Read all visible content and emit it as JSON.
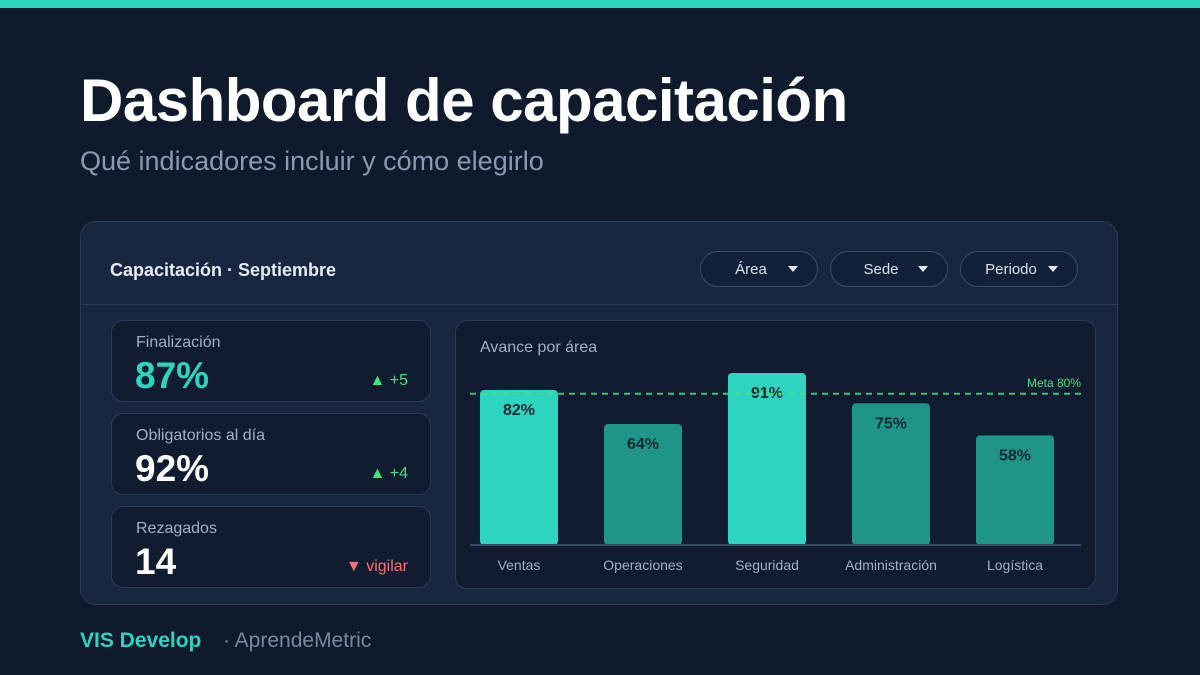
{
  "header": {
    "title": "Dashboard de capacitación",
    "subtitle": "Qué indicadores incluir y cómo elegirlo"
  },
  "card": {
    "title": "Capacitación · Septiembre",
    "filters": [
      {
        "label": "Área"
      },
      {
        "label": "Sede"
      },
      {
        "label": "Periodo"
      }
    ]
  },
  "kpis": [
    {
      "label": "Finalización",
      "value": "87%",
      "delta": "▲ +5",
      "trend": "up"
    },
    {
      "label": "Obligatorios al día",
      "value": "92%",
      "delta": "▲ +4",
      "trend": "up"
    },
    {
      "label": "Rezagados",
      "value": "14",
      "delta": "▼ vigilar",
      "trend": "down"
    }
  ],
  "chart_data": {
    "type": "bar",
    "title": "Avance por área",
    "categories": [
      "Ventas",
      "Operaciones",
      "Seguridad",
      "Administración",
      "Logística"
    ],
    "values": [
      82,
      64,
      91,
      75,
      58
    ],
    "value_labels": [
      "82%",
      "64%",
      "91%",
      "75%",
      "58%"
    ],
    "ylim": [
      0,
      100
    ],
    "target": {
      "value": 80,
      "label": "Meta 80%"
    },
    "grid": false,
    "colors": {
      "above_target": "#2dd4bf",
      "below_target": "#1f9488",
      "target_line": "#4ade80"
    }
  },
  "footer": {
    "brand": "VIS Develop",
    "sub": "· AprendeMetric"
  }
}
